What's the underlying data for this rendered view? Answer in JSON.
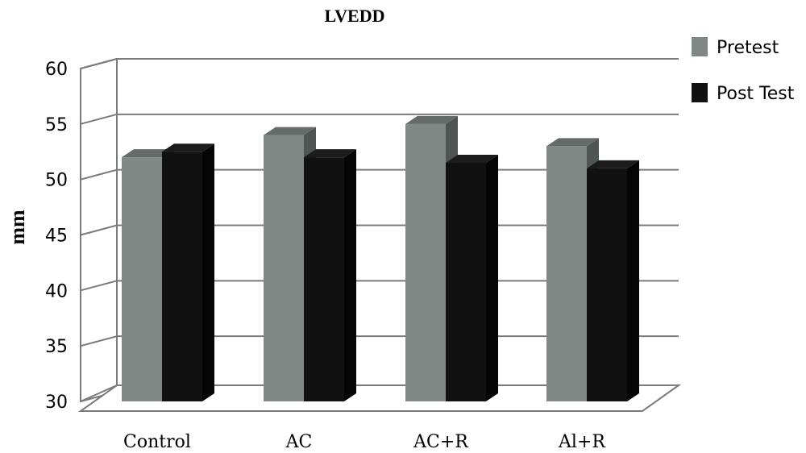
{
  "chart_data": {
    "type": "bar",
    "title": "LVEDD",
    "ylabel": "mm",
    "xlabel": "",
    "categories": [
      "Control",
      "AC",
      "AC+R",
      "Al+R"
    ],
    "series": [
      {
        "name": "Pretest",
        "values": [
          52,
          54,
          55,
          53
        ]
      },
      {
        "name": "Post Test",
        "values": [
          52.5,
          52,
          51.5,
          51
        ]
      }
    ],
    "ylim": [
      30,
      60
    ],
    "yticks": [
      30,
      35,
      40,
      45,
      50,
      55,
      60
    ],
    "grid": true,
    "legend_position": "top-right",
    "style": "3d-column",
    "colors": {
      "Pretest_front": "#808986",
      "Pretest_side": "#4f5553",
      "Pretest_top": "#646b69",
      "Post Test_front": "#111111",
      "Post Test_side": "#050505",
      "Post Test_top": "#1c1c1c",
      "grid": "#7a7a7a",
      "wall": "#ffffff"
    }
  }
}
